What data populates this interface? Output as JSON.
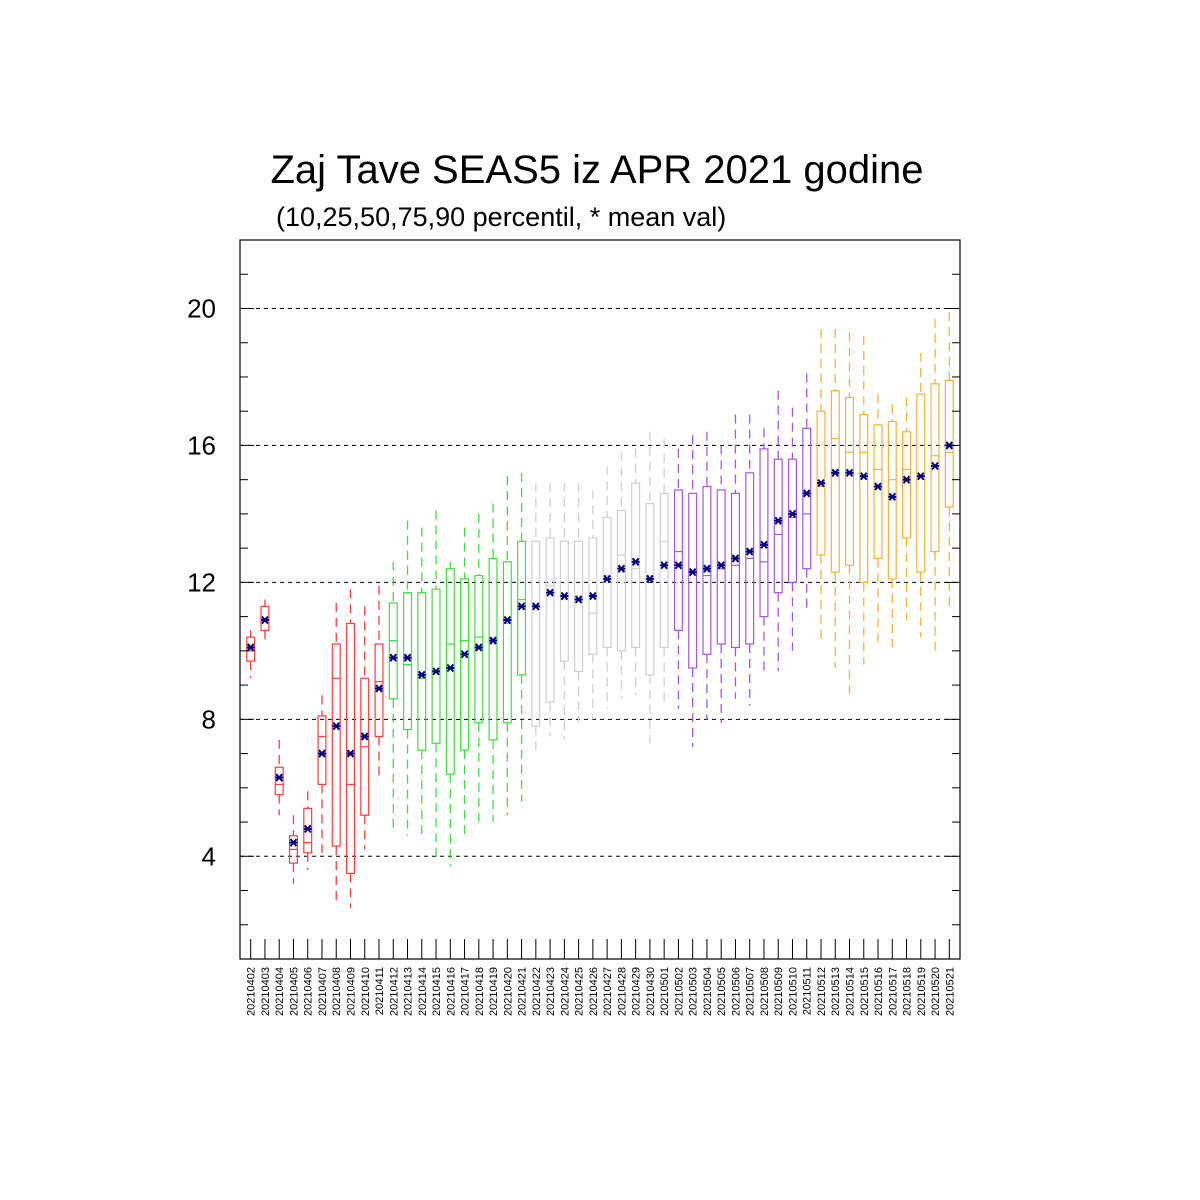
{
  "chart_data": {
    "type": "boxplot",
    "title": "Zaj Tave SEAS5 iz APR 2021 godine",
    "subtitle": "(10,25,50,75,90 percentil, * mean val)",
    "ylim": [
      1,
      22
    ],
    "yticks": [
      "4",
      "8",
      "12",
      "16",
      "20"
    ],
    "grid": "horizontal dashed at labeled ticks",
    "categories": [
      "20210402",
      "20210403",
      "20210404",
      "20210405",
      "20210406",
      "20210407",
      "20210408",
      "20210409",
      "20210410",
      "20210411",
      "20210412",
      "20210413",
      "20210414",
      "20210415",
      "20210416",
      "20210417",
      "20210418",
      "20210419",
      "20210420",
      "20210421",
      "20210422",
      "20210423",
      "20210424",
      "20210425",
      "20210426",
      "20210427",
      "20210428",
      "20210429",
      "20210430",
      "20210501",
      "20210502",
      "20210503",
      "20210504",
      "20210505",
      "20210506",
      "20210507",
      "20210508",
      "20210509",
      "20210510",
      "20210511",
      "20210512",
      "20210513",
      "20210514",
      "20210515",
      "20210516",
      "20210517",
      "20210518",
      "20210519",
      "20210520",
      "20210521"
    ],
    "colors": [
      "#ff3b3b",
      "#ff3b3b",
      "#ff3b3b",
      "#ff3b3b",
      "#ff3b3b",
      "#ff3b3b",
      "#ff3b3b",
      "#ff3b3b",
      "#ff3b3b",
      "#ff3b3b",
      "#3ee03e",
      "#3ee03e",
      "#3ee03e",
      "#3ee03e",
      "#3ee03e",
      "#3ee03e",
      "#3ee03e",
      "#3ee03e",
      "#3ee03e",
      "#3ee03e",
      "#cfcfcf",
      "#cfcfcf",
      "#cfcfcf",
      "#cfcfcf",
      "#cfcfcf",
      "#cfcfcf",
      "#cfcfcf",
      "#cfcfcf",
      "#cfcfcf",
      "#cfcfcf",
      "#a855e0",
      "#a855e0",
      "#a855e0",
      "#a855e0",
      "#a855e0",
      "#a855e0",
      "#a855e0",
      "#a855e0",
      "#a855e0",
      "#a855e0",
      "#f5b335",
      "#f5b335",
      "#f5b335",
      "#f5b335",
      "#f5b335",
      "#f5b335",
      "#f5b335",
      "#f5b335",
      "#f5b335",
      "#f5b335"
    ],
    "mean_color": "#000080",
    "p10": [
      9.2,
      10.2,
      5.2,
      3.2,
      3.6,
      4.1,
      2.6,
      2.5,
      4.2,
      6.2,
      4.7,
      4.6,
      4.6,
      3.9,
      3.7,
      4.5,
      4.9,
      5.0,
      5.2,
      5.6,
      7.0,
      7.5,
      7.4,
      7.9,
      8.0,
      8.3,
      8.6,
      8.7,
      7.3,
      8.4,
      8.3,
      7.2,
      8.0,
      7.9,
      8.6,
      8.4,
      9.3,
      9.4,
      10.0,
      11.2,
      10.2,
      9.5,
      8.7,
      9.6,
      10.1,
      10.1,
      10.9,
      10.4,
      9.9,
      11.2
    ],
    "p25": [
      9.7,
      10.6,
      5.8,
      3.8,
      4.1,
      6.1,
      4.3,
      3.5,
      5.2,
      7.5,
      8.6,
      7.7,
      7.1,
      7.3,
      6.4,
      7.1,
      7.9,
      7.4,
      7.9,
      9.3,
      7.8,
      8.5,
      9.7,
      9.4,
      9.9,
      10.1,
      10.0,
      10.1,
      9.3,
      10.1,
      10.6,
      9.5,
      9.9,
      10.2,
      10.1,
      10.2,
      11.0,
      11.7,
      12.0,
      12.4,
      12.8,
      12.3,
      12.5,
      12.0,
      12.7,
      12.1,
      13.3,
      12.3,
      12.9,
      14.2
    ],
    "p50": [
      10.0,
      10.9,
      6.1,
      4.2,
      4.4,
      7.5,
      9.2,
      6.1,
      7.2,
      9.1,
      10.3,
      9.6,
      9.2,
      9.4,
      10.2,
      10.3,
      10.4,
      10.3,
      10.8,
      11.5,
      11.3,
      11.9,
      11.5,
      11.6,
      11.1,
      12.2,
      12.8,
      12.4,
      12.2,
      13.2,
      12.9,
      12.3,
      12.2,
      12.4,
      12.5,
      12.7,
      12.6,
      13.4,
      13.9,
      14.0,
      14.8,
      16.2,
      15.8,
      15.8,
      15.3,
      15.0,
      15.3,
      15.1,
      15.7,
      15.8
    ],
    "p75": [
      10.4,
      11.3,
      6.6,
      4.6,
      5.4,
      8.1,
      10.2,
      10.8,
      9.2,
      10.2,
      11.4,
      11.7,
      11.7,
      11.8,
      12.4,
      12.1,
      12.2,
      12.7,
      12.6,
      13.2,
      13.2,
      13.3,
      13.2,
      13.2,
      13.3,
      13.9,
      14.1,
      14.9,
      14.3,
      14.6,
      14.7,
      14.6,
      14.8,
      14.7,
      14.6,
      15.2,
      15.9,
      15.6,
      15.6,
      16.5,
      17.0,
      17.6,
      17.4,
      16.9,
      16.6,
      16.7,
      16.4,
      17.5,
      17.8,
      17.9
    ],
    "p90": [
      10.6,
      11.5,
      7.4,
      5.2,
      5.9,
      8.7,
      11.4,
      11.8,
      11.3,
      11.9,
      12.6,
      13.8,
      13.6,
      14.1,
      12.6,
      13.6,
      14.0,
      14.3,
      15.1,
      15.2,
      14.9,
      14.9,
      14.9,
      14.9,
      14.7,
      15.4,
      15.8,
      15.9,
      16.4,
      16.2,
      15.9,
      16.3,
      16.4,
      16.0,
      16.9,
      16.9,
      16.5,
      17.6,
      17.1,
      18.1,
      19.4,
      19.4,
      19.3,
      19.2,
      17.5,
      17.2,
      17.4,
      18.7,
      19.7,
      19.9
    ],
    "mean": [
      10.1,
      10.9,
      6.3,
      4.4,
      4.8,
      7.0,
      7.8,
      7.0,
      7.5,
      8.9,
      9.8,
      9.8,
      9.3,
      9.4,
      9.5,
      9.9,
      10.1,
      10.3,
      10.9,
      11.3,
      11.3,
      11.7,
      11.6,
      11.5,
      11.6,
      12.1,
      12.4,
      12.6,
      12.1,
      12.5,
      12.5,
      12.3,
      12.4,
      12.5,
      12.7,
      12.9,
      13.1,
      13.8,
      14.0,
      14.6,
      14.9,
      15.2,
      15.2,
      15.1,
      14.8,
      14.5,
      15.0,
      15.1,
      15.4,
      16.0
    ]
  }
}
